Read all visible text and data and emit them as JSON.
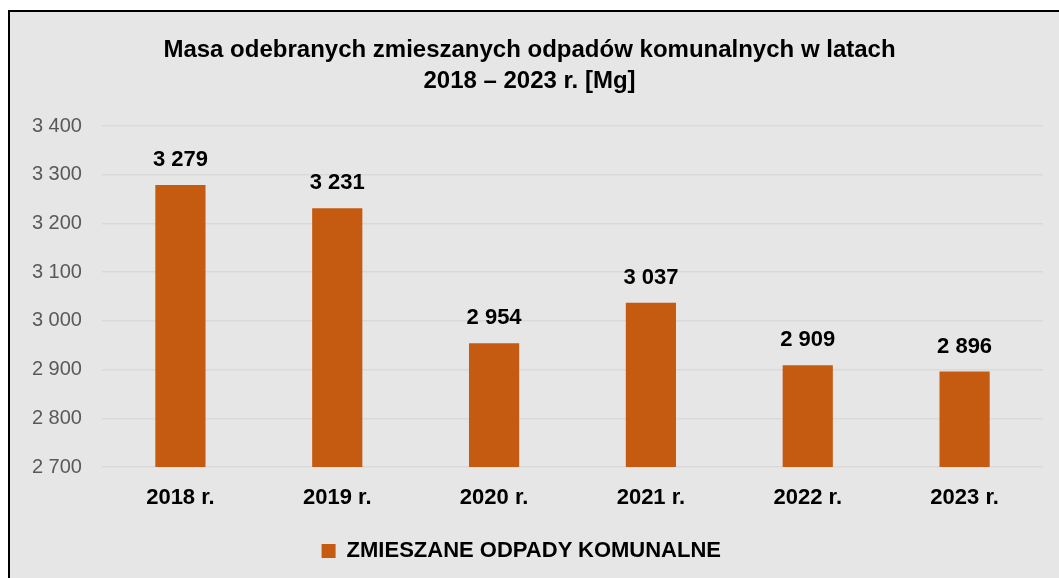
{
  "chart_data": {
    "type": "bar",
    "title": "Masa odebranych zmieszanych odpadów komunalnych w latach 2018 – 2023 r. [Mg]",
    "categories": [
      "2018 r.",
      "2019 r.",
      "2020 r.",
      "2021 r.",
      "2022 r.",
      "2023 r."
    ],
    "series": [
      {
        "name": "ZMIESZANE ODPADY KOMUNALNE",
        "color": "#c55a11",
        "values": [
          3279,
          3231,
          2954,
          3037,
          2909,
          2896
        ],
        "value_labels": [
          "3 279",
          "3 231",
          "2 954",
          "3 037",
          "2 909",
          "2 896"
        ]
      }
    ],
    "ylim": [
      2700,
      3400
    ],
    "yticks": [
      {
        "value": 2700,
        "label": "2 700"
      },
      {
        "value": 2800,
        "label": "2 800"
      },
      {
        "value": 2900,
        "label": "2 900"
      },
      {
        "value": 3000,
        "label": "3 000"
      },
      {
        "value": 3100,
        "label": "3 100"
      },
      {
        "value": 3200,
        "label": "3 200"
      },
      {
        "value": 3300,
        "label": "3 300"
      },
      {
        "value": 3400,
        "label": "3 400"
      }
    ],
    "grid": "y",
    "legend": "bottom"
  }
}
